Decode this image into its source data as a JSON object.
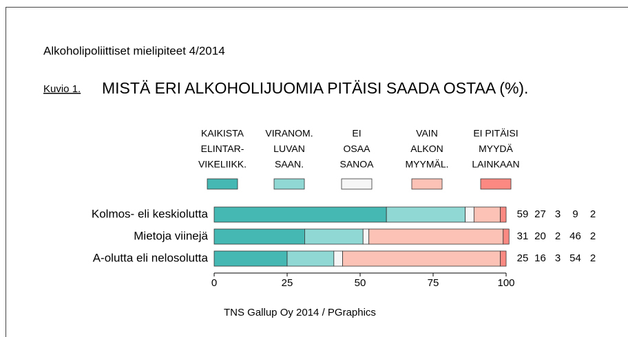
{
  "chart_data": {
    "type": "stacked-bar-horizontal",
    "subtitle": "Alkoholipoliittiset mielipiteet 4/2014",
    "figure_label": "Kuvio 1.",
    "title": "MISTÄ ERI ALKOHOLIJUOMIA PITÄISI SAADA OSTAA (%).",
    "source": "TNS Gallup Oy 2014 / PGraphics",
    "categories": [
      "Kolmos- eli keskiolutta",
      "Mietoja viinejä",
      "A-olutta eli nelosolutta"
    ],
    "series": [
      {
        "name": [
          "KAIKISTA",
          "ELINTAR-",
          "VIKELIIKK."
        ],
        "color": "#46b8b4",
        "values": [
          59,
          31,
          25
        ]
      },
      {
        "name": [
          "VIRANOM.",
          "LUVAN",
          "SAAN."
        ],
        "color": "#8fd8d4",
        "values": [
          27,
          20,
          16
        ]
      },
      {
        "name": [
          "EI",
          "OSAA",
          "SANOA"
        ],
        "color": "#f6f6f6",
        "values": [
          3,
          2,
          3
        ]
      },
      {
        "name": [
          "VAIN",
          "ALKON",
          "MYYMÄL."
        ],
        "color": "#fcc2b6",
        "values": [
          9,
          46,
          54
        ]
      },
      {
        "name": [
          "EI PITÄISI",
          "MYYDÄ",
          "LAINKAAN"
        ],
        "color": "#fc8a82",
        "values": [
          2,
          2,
          2
        ]
      }
    ],
    "xlim": [
      0,
      100
    ],
    "xticks": [
      0,
      25,
      50,
      75,
      100
    ]
  }
}
